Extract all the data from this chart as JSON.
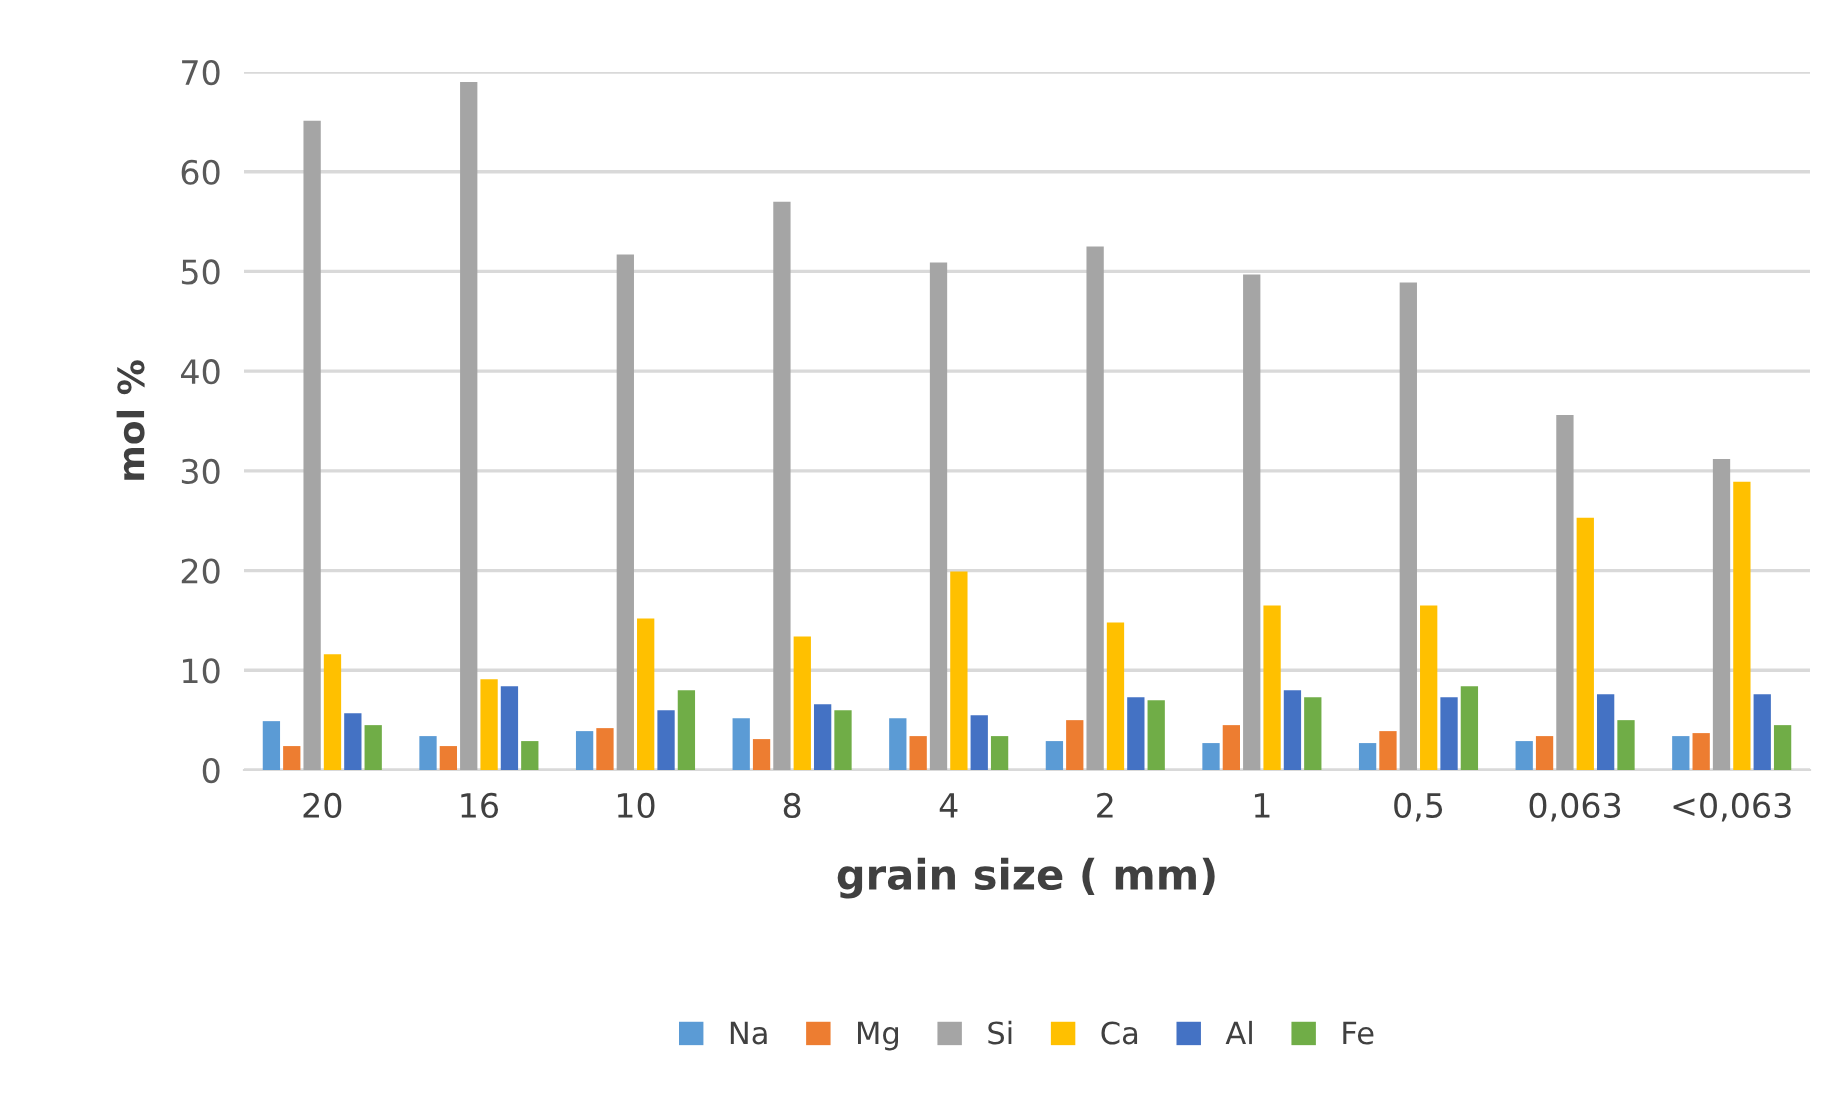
{
  "chart_data": {
    "type": "bar",
    "xlabel": "grain size ( mm)",
    "ylabel": "mol %",
    "categories": [
      "20",
      "16",
      "10",
      "8",
      "4",
      "2",
      "1",
      "0,5",
      "0,063",
      "<0,063"
    ],
    "series": [
      {
        "name": "Na",
        "color": "#5b9bd5",
        "values": [
          4.9,
          3.4,
          3.9,
          5.2,
          5.2,
          2.9,
          2.7,
          2.7,
          2.9,
          3.4
        ]
      },
      {
        "name": "Mg",
        "color": "#ed7d31",
        "values": [
          2.4,
          2.4,
          4.2,
          3.1,
          3.4,
          5.0,
          4.5,
          3.9,
          3.4,
          3.7
        ]
      },
      {
        "name": "Si",
        "color": "#a5a5a5",
        "values": [
          65.1,
          69.0,
          51.7,
          57.0,
          50.9,
          52.5,
          49.7,
          48.9,
          35.6,
          31.2
        ]
      },
      {
        "name": "Ca",
        "color": "#ffc000",
        "values": [
          11.6,
          9.1,
          15.2,
          13.4,
          19.9,
          14.8,
          16.5,
          16.5,
          25.3,
          28.9
        ]
      },
      {
        "name": "Al",
        "color": "#4472c4",
        "values": [
          5.7,
          8.4,
          6.0,
          6.6,
          5.5,
          7.3,
          8.0,
          7.3,
          7.6,
          7.6
        ]
      },
      {
        "name": "Fe",
        "color": "#70ad47",
        "values": [
          4.5,
          2.9,
          8.0,
          6.0,
          3.4,
          7.0,
          7.3,
          8.4,
          5.0,
          4.5
        ]
      }
    ],
    "ylim": [
      0,
      70
    ],
    "yticks": [
      0,
      10,
      20,
      30,
      40,
      50,
      60,
      70
    ],
    "grid": "y",
    "legend": "bottom"
  }
}
